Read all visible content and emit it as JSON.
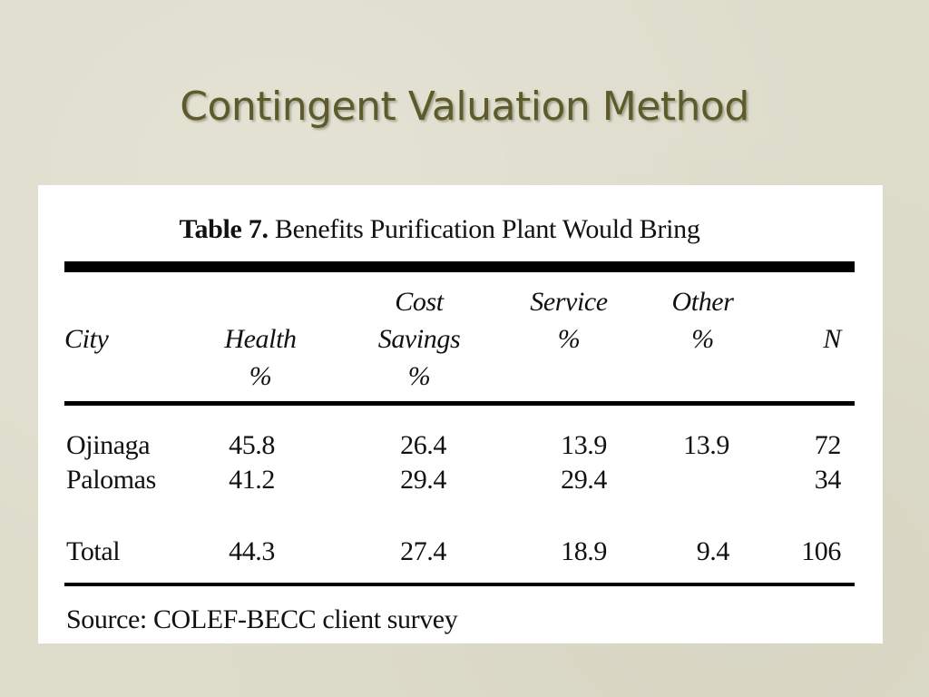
{
  "slide": {
    "title": "Contingent Valuation Method"
  },
  "table": {
    "caption_label": "Table 7.",
    "caption_text": "Benefits Purification Plant Would Bring",
    "headers": {
      "city": "City",
      "health": [
        "Health",
        "%"
      ],
      "cost_savings": [
        "Cost",
        "Savings",
        "%"
      ],
      "service": [
        "Service",
        "%"
      ],
      "other": [
        "Other",
        "%"
      ],
      "n": "N"
    },
    "rows": [
      {
        "city": "Ojinaga",
        "health": "45.8",
        "cost_savings": "26.4",
        "service": "13.9",
        "other": "13.9",
        "n": "72"
      },
      {
        "city": "Palomas",
        "health": "41.2",
        "cost_savings": "29.4",
        "service": "29.4",
        "other": "",
        "n": "34"
      }
    ],
    "total": {
      "city": "Total",
      "health": "44.3",
      "cost_savings": "27.4",
      "service": "18.9",
      "other": "9.4",
      "n": "106"
    },
    "source": "Source: COLEF-BECC client survey"
  }
}
